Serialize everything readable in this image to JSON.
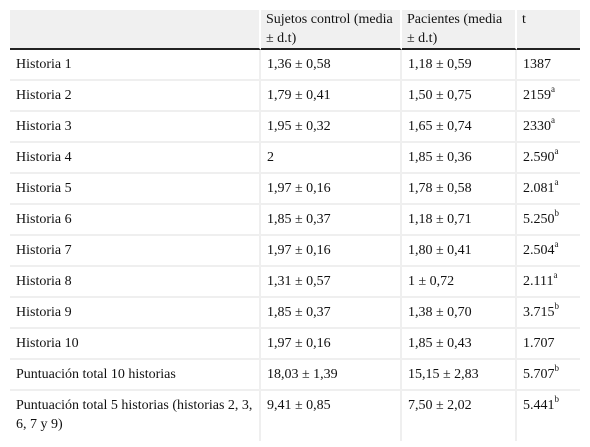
{
  "table": {
    "headers": [
      "",
      "Sujetos control (media ± d.t)",
      "Pacientes (media ± d.t)",
      "t"
    ],
    "rows": [
      {
        "label": "Historia 1",
        "control": "1,36 ± 0,58",
        "patients": "1,18 ± 0,59",
        "t": "1387",
        "t_note": ""
      },
      {
        "label": "Historia 2",
        "control": "1,79 ± 0,41",
        "patients": "1,50 ± 0,75",
        "t": "2159",
        "t_note": "a"
      },
      {
        "label": "Historia 3",
        "control": "1,95 ± 0,32",
        "patients": "1,65 ± 0,74",
        "t": "2330",
        "t_note": "a"
      },
      {
        "label": "Historia 4",
        "control": "2",
        "patients": "1,85 ± 0,36",
        "t": "2.590",
        "t_note": "a"
      },
      {
        "label": "Historia 5",
        "control": "1,97 ± 0,16",
        "patients": "1,78 ± 0,58",
        "t": "2.081",
        "t_note": "a"
      },
      {
        "label": "Historia 6",
        "control": "1,85 ± 0,37",
        "patients": "1,18 ± 0,71",
        "t": "5.250",
        "t_note": "b"
      },
      {
        "label": "Historia 7",
        "control": "1,97 ± 0,16",
        "patients": "1,80 ± 0,41",
        "t": "2.504",
        "t_note": "a"
      },
      {
        "label": "Historia 8",
        "control": "1,31 ± 0,57",
        "patients": "1 ± 0,72",
        "t": "2.111",
        "t_note": "a"
      },
      {
        "label": "Historia 9",
        "control": "1,85 ± 0,37",
        "patients": "1,38 ± 0,70",
        "t": "3.715",
        "t_note": "b"
      },
      {
        "label": "Historia 10",
        "control": "1,97 ± 0,16",
        "patients": "1,85 ± 0,43",
        "t": "1.707",
        "t_note": ""
      },
      {
        "label": "Puntuación total 10 historias",
        "control": "18,03 ± 1,39",
        "patients": "15,15 ± 2,83",
        "t": "5.707",
        "t_note": "b"
      },
      {
        "label": "Puntuación total 5 historias (historias 2, 3, 6, 7 y 9)",
        "control": "9,41 ± 0,85",
        "patients": "7,50 ± 2,02",
        "t": "5.441",
        "t_note": "b"
      }
    ]
  }
}
